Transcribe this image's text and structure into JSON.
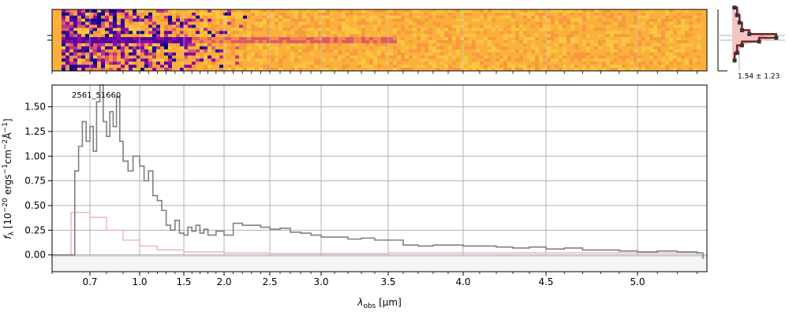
{
  "figure": {
    "spectrum_label": "2561_51660",
    "profile_label": "1.54 ± 1.23",
    "xlabel_prefix": "λ",
    "xlabel_sub": "obs",
    "xlabel_suffix": " [μm]",
    "ylabel_prefix": "f",
    "ylabel_sub": "λ",
    "ylabel_main": " [10",
    "ylabel_exp1": "−20",
    "ylabel_mid": " ergs",
    "ylabel_exp2": "−1",
    "ylabel_cm": "cm",
    "ylabel_exp3": "−2",
    "ylabel_A": "Å",
    "ylabel_exp4": "−1",
    "ylabel_end": "]"
  },
  "colors": {
    "spectrum": "#808080",
    "model": "#f4b8b8",
    "profile_line": "#7a2020",
    "profile_fill": "#f2c4c4",
    "profile_points": "#333333",
    "grid": "#b0b0b0",
    "image_background": "#fcb03c"
  },
  "chart_data": [
    {
      "type": "heatmap",
      "panel": "2D spectrum",
      "colormap": "plasma",
      "description_values": "2D dispersed spectrum, trace along centre row"
    },
    {
      "type": "line",
      "panel": "1D spectrum",
      "x_scale": "nonlinear (pixel-like)",
      "xlim": [
        0.6,
        5.35
      ],
      "ylim": [
        -0.17,
        1.72
      ],
      "x_ticks": [
        0.7,
        1.0,
        1.5,
        2.0,
        2.5,
        3.0,
        3.5,
        4.0,
        4.5,
        5.0
      ],
      "x_tick_labels": [
        "0.7",
        "1.0",
        "1.5",
        "2.0",
        "2.5",
        "3.0",
        "3.5",
        "4.0",
        "4.5",
        "5.0"
      ],
      "y_ticks": [
        0.0,
        0.25,
        0.5,
        0.75,
        1.0,
        1.25,
        1.5
      ],
      "y_tick_labels": [
        "0.00",
        "0.25",
        "0.50",
        "0.75",
        "1.00",
        "1.25",
        "1.50"
      ],
      "grid": true,
      "series": [
        {
          "role": "spectrum",
          "x": [
            0.6,
            0.65,
            0.66,
            0.67,
            0.68,
            0.69,
            0.7,
            0.72,
            0.74,
            0.76,
            0.78,
            0.8,
            0.82,
            0.84,
            0.86,
            0.88,
            0.9,
            0.93,
            0.96,
            1.0,
            1.05,
            1.1,
            1.15,
            1.2,
            1.25,
            1.3,
            1.35,
            1.4,
            1.45,
            1.5,
            1.55,
            1.6,
            1.65,
            1.7,
            1.75,
            1.8,
            1.9,
            2.0,
            2.1,
            2.2,
            2.3,
            2.4,
            2.5,
            2.6,
            2.7,
            2.8,
            2.9,
            3.0,
            3.1,
            3.2,
            3.3,
            3.4,
            3.5,
            3.6,
            3.7,
            3.8,
            3.9,
            4.0,
            4.1,
            4.2,
            4.3,
            4.4,
            4.5,
            4.6,
            4.7,
            4.8,
            4.9,
            5.0,
            5.1,
            5.2,
            5.3,
            5.33
          ],
          "y": [
            0.0,
            0.0,
            0.85,
            1.1,
            1.35,
            1.15,
            1.3,
            1.05,
            1.55,
            1.8,
            1.35,
            1.2,
            1.45,
            1.3,
            1.6,
            1.15,
            0.95,
            0.85,
            1.0,
            0.9,
            0.75,
            0.85,
            0.6,
            0.55,
            0.45,
            0.3,
            0.25,
            0.35,
            0.22,
            0.2,
            0.28,
            0.24,
            0.3,
            0.22,
            0.26,
            0.2,
            0.24,
            0.2,
            0.32,
            0.3,
            0.3,
            0.28,
            0.26,
            0.27,
            0.23,
            0.22,
            0.2,
            0.18,
            0.18,
            0.16,
            0.17,
            0.15,
            0.15,
            0.1,
            0.09,
            0.1,
            0.1,
            0.09,
            0.09,
            0.08,
            0.07,
            0.08,
            0.06,
            0.07,
            0.05,
            0.05,
            0.04,
            0.03,
            0.04,
            0.03,
            0.02,
            -0.04
          ]
        },
        {
          "role": "model",
          "x": [
            0.6,
            0.64,
            0.65,
            0.7,
            0.8,
            0.9,
            1.0,
            1.2,
            1.5,
            2.0,
            2.5,
            3.0,
            3.5,
            4.0,
            4.5,
            5.0,
            5.33
          ],
          "y": [
            0.0,
            0.0,
            0.43,
            0.38,
            0.25,
            0.15,
            0.09,
            0.05,
            0.03,
            0.02,
            0.015,
            0.015,
            0.02,
            0.02,
            0.02,
            0.02,
            0.02
          ]
        }
      ]
    },
    {
      "type": "line",
      "panel": "spatial profile",
      "profile_x": [
        0.05,
        0.1,
        0.15,
        0.2,
        0.35,
        0.9,
        0.55,
        0.2,
        0.1,
        0.05
      ],
      "profile_y": [
        -8,
        -6,
        -4,
        -2,
        -1,
        0,
        1,
        2,
        4,
        6
      ]
    }
  ]
}
